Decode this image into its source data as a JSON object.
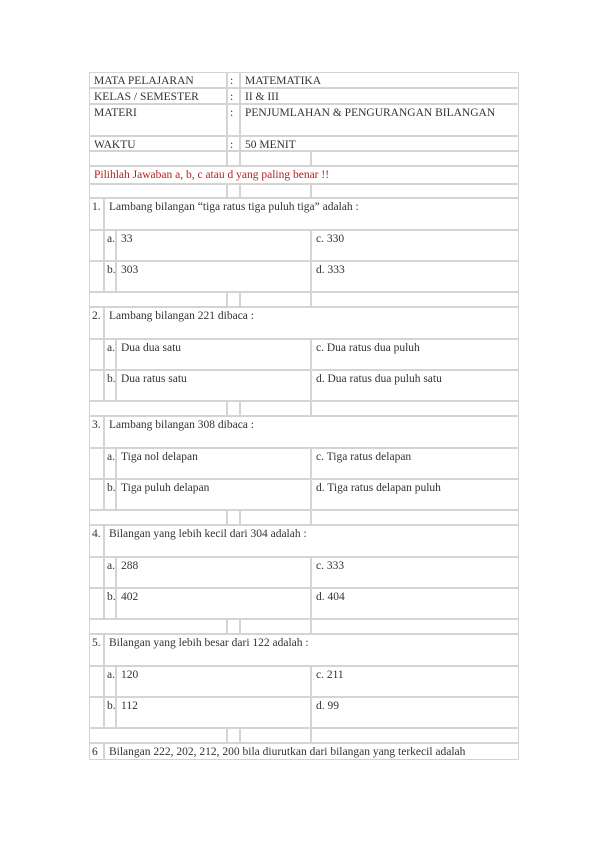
{
  "header": {
    "rows": [
      [
        "MATA PELAJARAN",
        ":",
        "MATEMATIKA"
      ],
      [
        "KELAS / SEMESTER",
        ":",
        "II & III"
      ],
      [
        "MATERI",
        ":",
        "PENJUMLAHAN & PENGURANGAN BILANGAN"
      ],
      [
        "WAKTU",
        ":",
        "50 MENIT"
      ]
    ]
  },
  "instruction": "Pilihlah Jawaban a, b, c atau d yang paling benar !!",
  "questions": [
    {
      "number": "1.",
      "text": "Lambang bilangan “tiga ratus tiga puluh tiga” adalah :",
      "options": [
        [
          "a.",
          "33",
          "c. 330"
        ],
        [
          "b.",
          "303",
          "d. 333"
        ]
      ]
    },
    {
      "number": "2.",
      "text": "Lambang bilangan 221 dibaca :",
      "options": [
        [
          "a.",
          "Dua dua satu",
          "c. Dua ratus dua puluh"
        ],
        [
          "b.",
          "Dua ratus satu",
          "d. Dua ratus dua puluh satu"
        ]
      ]
    },
    {
      "number": "3.",
      "text": "Lambang bilangan 308 dibaca :",
      "options": [
        [
          "a.",
          "Tiga nol delapan",
          "c. Tiga ratus delapan"
        ],
        [
          "b.",
          "Tiga puluh delapan",
          "d. Tiga ratus delapan puluh"
        ]
      ]
    },
    {
      "number": "4.",
      "text": "Bilangan yang lebih kecil dari 304 adalah :",
      "options": [
        [
          "a.",
          "288",
          "c. 333"
        ],
        [
          "b.",
          "402",
          "d. 404"
        ]
      ]
    },
    {
      "number": "5.",
      "text": "Bilangan yang lebih besar dari 122 adalah :",
      "options": [
        [
          "a.",
          "120",
          "c. 211"
        ],
        [
          "b.",
          "112",
          "d. 99"
        ]
      ]
    },
    {
      "number": "6",
      "text": "Bilangan 222, 202, 212, 200 bila diurutkan dari bilangan yang terkecil adalah",
      "options": []
    }
  ]
}
